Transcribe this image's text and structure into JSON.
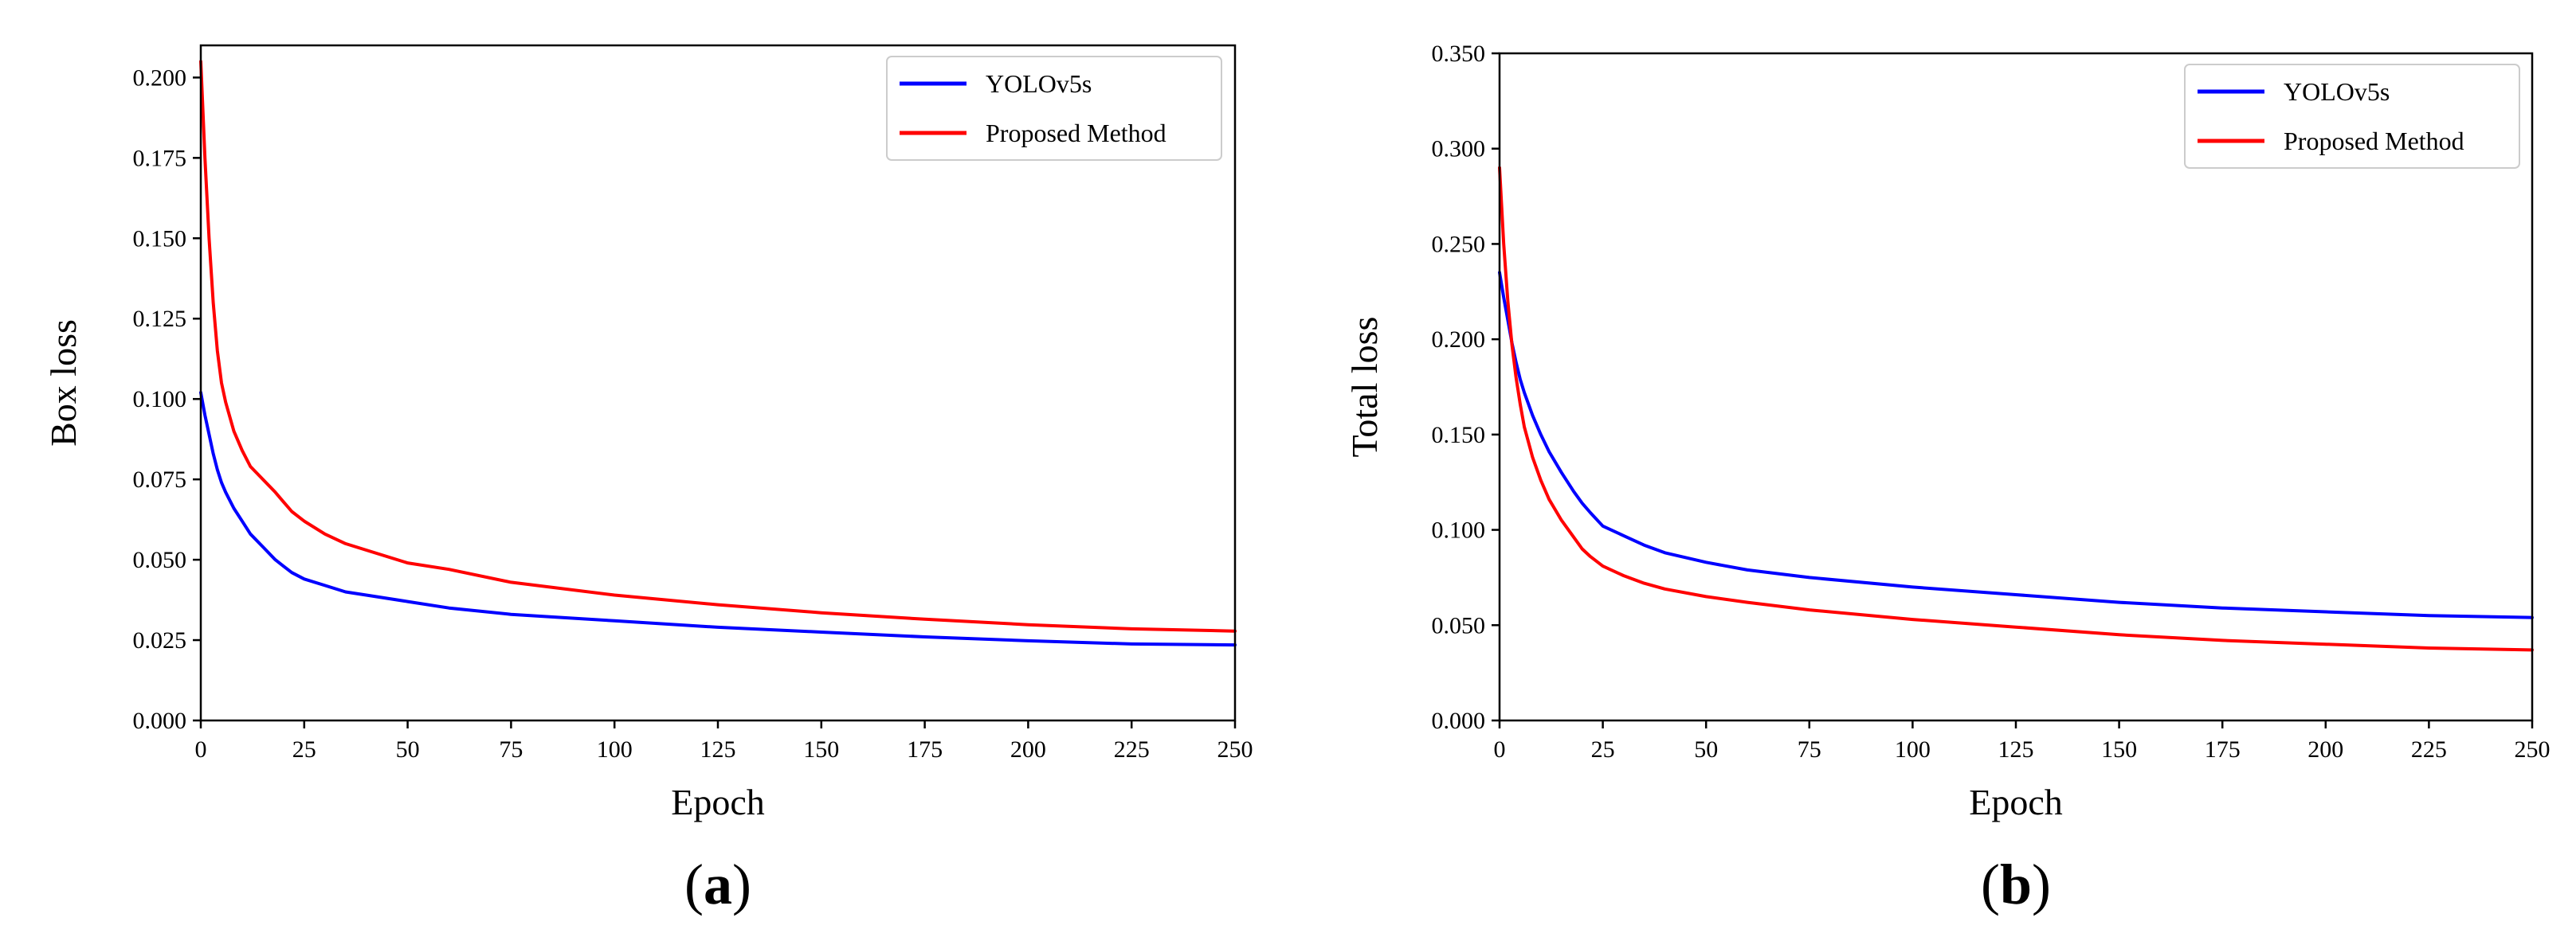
{
  "chart_data": [
    {
      "type": "line",
      "panel_label_open": "(",
      "panel_label_letter": "a",
      "panel_label_close": ")",
      "xlabel": "Epoch",
      "ylabel": "Box loss",
      "xlim": [
        0,
        250
      ],
      "ylim": [
        0,
        0.21
      ],
      "xticks": [
        0,
        25,
        50,
        75,
        100,
        125,
        150,
        175,
        200,
        225,
        250
      ],
      "xtick_labels": [
        "0",
        "25",
        "50",
        "75",
        "100",
        "125",
        "150",
        "175",
        "200",
        "225",
        "250"
      ],
      "yticks": [
        0,
        0.025,
        0.05,
        0.075,
        0.1,
        0.125,
        0.15,
        0.175,
        0.2
      ],
      "ytick_labels": [
        "0.000",
        "0.025",
        "0.050",
        "0.075",
        "0.100",
        "0.125",
        "0.150",
        "0.175",
        "0.200"
      ],
      "legend_position": "top-right",
      "series": [
        {
          "name": "YOLOv5s",
          "color": "#0000ff",
          "x": [
            0,
            1,
            2,
            3,
            4,
            5,
            6,
            8,
            10,
            12,
            15,
            18,
            20,
            22,
            25,
            30,
            35,
            40,
            50,
            60,
            75,
            100,
            125,
            150,
            175,
            200,
            225,
            250
          ],
          "y": [
            0.102,
            0.095,
            0.089,
            0.083,
            0.078,
            0.074,
            0.071,
            0.066,
            0.062,
            0.058,
            0.054,
            0.05,
            0.048,
            0.046,
            0.044,
            0.042,
            0.04,
            0.039,
            0.037,
            0.035,
            0.033,
            0.031,
            0.029,
            0.0275,
            0.026,
            0.0248,
            0.0238,
            0.0235
          ]
        },
        {
          "name": "Proposed Method",
          "color": "#ff0000",
          "x": [
            0,
            1,
            2,
            3,
            4,
            5,
            6,
            8,
            10,
            12,
            15,
            18,
            20,
            22,
            25,
            30,
            35,
            40,
            50,
            60,
            75,
            100,
            125,
            150,
            175,
            200,
            225,
            250
          ],
          "y": [
            0.205,
            0.175,
            0.15,
            0.13,
            0.115,
            0.105,
            0.099,
            0.09,
            0.084,
            0.079,
            0.075,
            0.071,
            0.068,
            0.065,
            0.062,
            0.058,
            0.055,
            0.053,
            0.049,
            0.047,
            0.043,
            0.039,
            0.036,
            0.0335,
            0.0315,
            0.0298,
            0.0285,
            0.0278
          ]
        }
      ]
    },
    {
      "type": "line",
      "panel_label_open": "(",
      "panel_label_letter": "b",
      "panel_label_close": ")",
      "xlabel": "Epoch",
      "ylabel": "Total loss",
      "xlim": [
        0,
        250
      ],
      "ylim": [
        0,
        0.35
      ],
      "xticks": [
        0,
        25,
        50,
        75,
        100,
        125,
        150,
        175,
        200,
        225,
        250
      ],
      "xtick_labels": [
        "0",
        "25",
        "50",
        "75",
        "100",
        "125",
        "150",
        "175",
        "200",
        "225",
        "250"
      ],
      "yticks": [
        0,
        0.05,
        0.1,
        0.15,
        0.2,
        0.25,
        0.3,
        0.35
      ],
      "ytick_labels": [
        "0.000",
        "0.050",
        "0.100",
        "0.150",
        "0.200",
        "0.250",
        "0.300",
        "0.350"
      ],
      "legend_position": "top-right",
      "series": [
        {
          "name": "YOLOv5s",
          "color": "#0000ff",
          "x": [
            0,
            1,
            2,
            3,
            4,
            5,
            6,
            8,
            10,
            12,
            15,
            18,
            20,
            22,
            25,
            30,
            35,
            40,
            50,
            60,
            75,
            100,
            125,
            150,
            175,
            200,
            225,
            250
          ],
          "y": [
            0.235,
            0.222,
            0.21,
            0.198,
            0.188,
            0.179,
            0.172,
            0.16,
            0.15,
            0.141,
            0.13,
            0.12,
            0.114,
            0.109,
            0.102,
            0.097,
            0.092,
            0.088,
            0.083,
            0.079,
            0.075,
            0.07,
            0.066,
            0.062,
            0.059,
            0.057,
            0.055,
            0.054
          ]
        },
        {
          "name": "Proposed Method",
          "color": "#ff0000",
          "x": [
            0,
            1,
            2,
            3,
            4,
            5,
            6,
            8,
            10,
            12,
            15,
            18,
            20,
            22,
            25,
            30,
            35,
            40,
            50,
            60,
            75,
            100,
            125,
            150,
            175,
            200,
            225,
            250
          ],
          "y": [
            0.29,
            0.25,
            0.22,
            0.197,
            0.18,
            0.166,
            0.154,
            0.138,
            0.126,
            0.116,
            0.105,
            0.096,
            0.09,
            0.086,
            0.081,
            0.076,
            0.072,
            0.069,
            0.065,
            0.062,
            0.058,
            0.053,
            0.049,
            0.045,
            0.042,
            0.04,
            0.038,
            0.037
          ]
        }
      ]
    }
  ]
}
